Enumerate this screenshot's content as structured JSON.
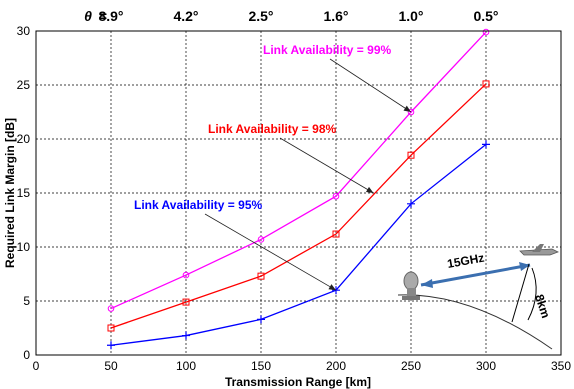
{
  "chart_data": {
    "type": "line",
    "x": [
      50,
      100,
      150,
      200,
      250,
      300
    ],
    "xlabel": "Transmission Range [km]",
    "ylabel": "Required Link Margin [dB]",
    "xlim": [
      0,
      350
    ],
    "ylim": [
      0,
      30
    ],
    "xticks": [
      0,
      50,
      100,
      150,
      200,
      250,
      300,
      350
    ],
    "yticks": [
      0,
      5,
      10,
      15,
      20,
      25,
      30
    ],
    "grid": true,
    "theta_symbol": "θ",
    "theta_equals": "=",
    "theta_labels": [
      {
        "x": 50,
        "label": "8.9°"
      },
      {
        "x": 100,
        "label": "4.2°"
      },
      {
        "x": 150,
        "label": "2.5°"
      },
      {
        "x": 200,
        "label": "1.6°"
      },
      {
        "x": 250,
        "label": "1.0°"
      },
      {
        "x": 300,
        "label": "0.5°"
      }
    ],
    "series": [
      {
        "name": "Link Availability = 99%",
        "color": "#ff00ff",
        "marker": "circle",
        "values": [
          4.3,
          7.4,
          10.7,
          14.7,
          22.5,
          29.9
        ]
      },
      {
        "name": "Link Availability = 98%",
        "color": "#ff0000",
        "marker": "square",
        "values": [
          2.5,
          4.9,
          7.3,
          11.2,
          18.5,
          25.1
        ]
      },
      {
        "name": "Link Availability = 95%",
        "color": "#0000ff",
        "marker": "plus",
        "values": [
          0.9,
          1.8,
          3.3,
          6.0,
          14.0,
          19.5
        ]
      }
    ],
    "annotations": [
      {
        "text": "Link Availability = 99%",
        "color": "#ff00ff",
        "x": 250,
        "y": 22.5
      },
      {
        "text": "Link Availability = 98%",
        "color": "#ff0000",
        "x": 225,
        "y": 15
      },
      {
        "text": "Link Availability = 95%",
        "color": "#0000ff",
        "x": 200,
        "y": 6
      }
    ],
    "inset": {
      "frequency_label": "15GHz",
      "height_label": "8km",
      "icons": [
        "ground-station-dish-icon",
        "aircraft-icon"
      ]
    }
  }
}
